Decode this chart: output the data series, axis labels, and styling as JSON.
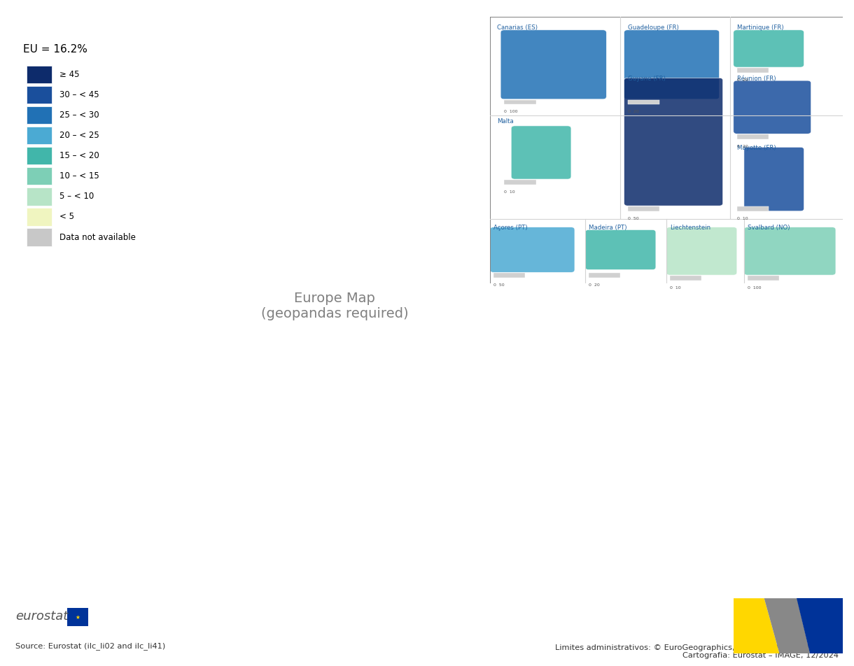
{
  "title": "",
  "eu_average": "EU = 16.2%",
  "legend_labels": [
    "≥ 45",
    "30 – < 45",
    "25 – < 30",
    "20 – < 25",
    "15 – < 20",
    "10 – < 15",
    "5 – < 10",
    "< 5",
    "Data not available"
  ],
  "legend_colors": [
    "#0d2b6b",
    "#1a4f9c",
    "#2171b5",
    "#4baad3",
    "#41b6aa",
    "#7dcfb6",
    "#b7e4c7",
    "#f0f5c0",
    "#c8c8c8"
  ],
  "background_color": "#ffffff",
  "source_text_left": "Source: Eurostat (ilc_li02 and ilc_li41)",
  "source_text_right": "Limites administrativos: © EuroGeographics, © FAO (ONU), © TurkStat\nCartografia: Eurostat – IMAGE, 12/2024",
  "figsize": [
    12.0,
    9.29
  ],
  "dpi": 100
}
